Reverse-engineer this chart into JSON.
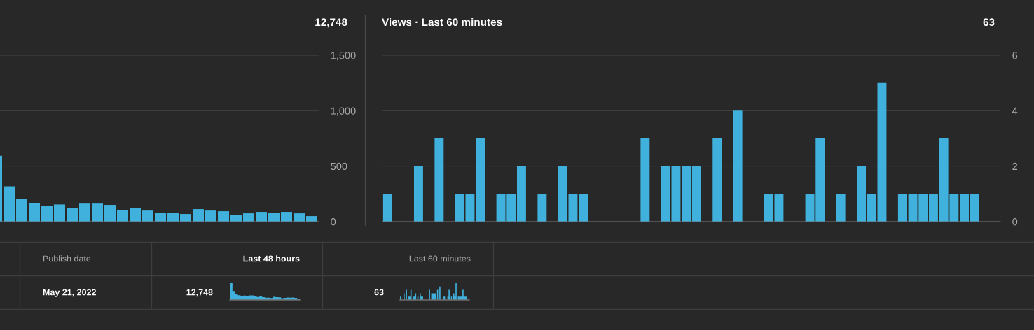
{
  "chart_data": [
    {
      "type": "bar",
      "categories": [
        null,
        null,
        null,
        null,
        null,
        null,
        null,
        null,
        null,
        null,
        null,
        null,
        null,
        null,
        null,
        null,
        null,
        null,
        null,
        null,
        null,
        null,
        null,
        null,
        null,
        null
      ],
      "values": [
        594,
        318,
        205,
        169,
        144,
        155,
        126,
        163,
        163,
        151,
        107,
        126,
        100,
        82,
        82,
        69,
        113,
        100,
        94,
        63,
        75,
        88,
        82,
        88,
        75,
        50
      ],
      "color": "#3fb1dc",
      "ylim": [
        0,
        1500
      ],
      "yticks": [
        0,
        {
          "value": 500,
          "label": "500"
        },
        {
          "value": 1000,
          "label": "1,000"
        },
        {
          "value": 1500,
          "label": "1,500"
        }
      ],
      "grid": "y",
      "tick_labels": "y",
      "annotations": [
        "12,748"
      ]
    },
    {
      "type": "bar",
      "title": "Views · Last 60 minutes",
      "categories": [
        null,
        null,
        null,
        null,
        null,
        null,
        null,
        null,
        null,
        null,
        null,
        null,
        null,
        null,
        null,
        null,
        null,
        null,
        null,
        null,
        null,
        null,
        null,
        null,
        null,
        null,
        null,
        null,
        null,
        null,
        null,
        null,
        null,
        null,
        null,
        null,
        null,
        null,
        null,
        null,
        null,
        null,
        null,
        null,
        null,
        null,
        null,
        null,
        null,
        null,
        null,
        null,
        null,
        null,
        null,
        null,
        null,
        null,
        null,
        null
      ],
      "values": [
        1,
        0,
        0,
        2,
        0,
        3,
        0,
        1,
        1,
        3,
        0,
        1,
        1,
        2,
        0,
        1,
        0,
        2,
        1,
        1,
        0,
        0,
        0,
        0,
        0,
        3,
        0,
        2,
        2,
        2,
        2,
        0,
        3,
        0,
        4,
        0,
        0,
        1,
        1,
        0,
        0,
        1,
        3,
        0,
        1,
        0,
        2,
        1,
        5,
        0,
        1,
        1,
        1,
        1,
        3,
        1,
        1,
        1,
        0,
        0
      ],
      "color": "#3fb1dc",
      "ylim": [
        0,
        6
      ],
      "yticks": [
        0,
        2,
        4,
        6
      ],
      "grid": "y",
      "tick_labels": "y",
      "annotations": [
        "63"
      ]
    },
    {
      "type": "other",
      "annotations": [
        "Publish date",
        "Last 48 hours",
        "Last 60 minutes",
        "May 21, 2022",
        "12,748",
        "63"
      ]
    }
  ]
}
